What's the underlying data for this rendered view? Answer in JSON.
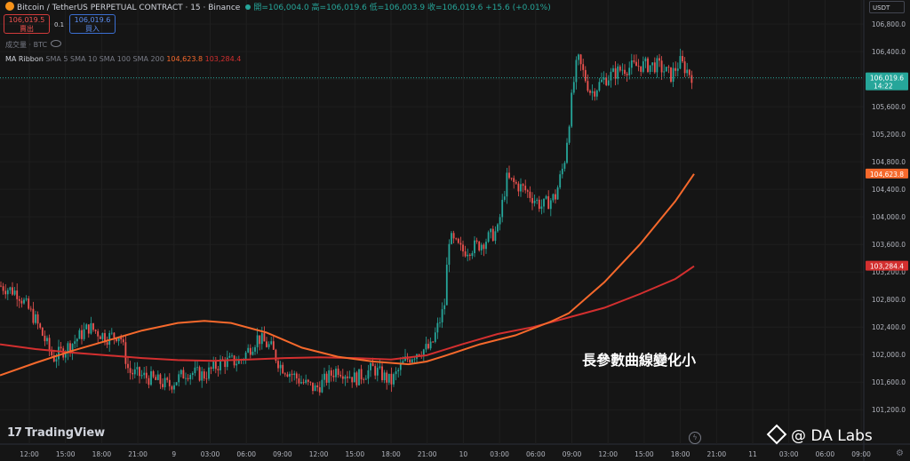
{
  "header": {
    "symbol": "Bitcoin / TetherUS PERPETUAL CONTRACT · 15 · Binance",
    "ohlc": "開=106,004.0  高=106,019.6  低=106,003.9  收=106,019.6  +15.6 (+0.01%)",
    "sell_price": "106,019.5",
    "sell_label": "賣出",
    "spread": "0.1",
    "buy_price": "106,019.6",
    "buy_label": "買入",
    "volume_label": "成交量 · BTC",
    "indicator_name": "MA Ribbon",
    "indicator_params": "SMA 5  SMA 10  SMA 100  SMA 200",
    "indicator_val1": "104,623.8",
    "indicator_val2": "103,284.4",
    "currency": "USDT"
  },
  "branding": {
    "tradingview": "TradingView",
    "watermark": "@ DA Labs"
  },
  "chart_data": {
    "type": "candlestick",
    "annotation": "長參數曲線變化小",
    "y_ticks": [
      101200,
      101600,
      102000,
      102400,
      102800,
      103200,
      103600,
      104000,
      104400,
      104800,
      105200,
      105600,
      106000,
      106400,
      106800
    ],
    "y_range": [
      100700,
      107150
    ],
    "x_ticks": [
      "12:00",
      "15:00",
      "18:00",
      "21:00",
      "9",
      "03:00",
      "06:00",
      "09:00",
      "12:00",
      "15:00",
      "18:00",
      "21:00",
      "10",
      "03:00",
      "06:00",
      "09:00",
      "12:00",
      "15:00",
      "18:00",
      "21:00",
      "11",
      "03:00",
      "06:00",
      "09:00"
    ],
    "price_labels": [
      {
        "text": "106,019.6",
        "sub": "14:22",
        "value": 106019.6,
        "color": "#26a69a"
      },
      {
        "text": "104,623.8",
        "value": 104623.8,
        "color": "#f6692c"
      },
      {
        "text": "103,284.4",
        "value": 103284.4,
        "color": "#d32f2f"
      }
    ],
    "ma_slow": [
      [
        0,
        102150
      ],
      [
        40,
        102080
      ],
      [
        80,
        102030
      ],
      [
        120,
        101990
      ],
      [
        160,
        101950
      ],
      [
        200,
        101920
      ],
      [
        240,
        101910
      ],
      [
        280,
        101930
      ],
      [
        320,
        101950
      ],
      [
        360,
        101960
      ],
      [
        400,
        101950
      ],
      [
        440,
        101930
      ],
      [
        480,
        101990
      ],
      [
        520,
        102150
      ],
      [
        560,
        102300
      ],
      [
        600,
        102400
      ],
      [
        640,
        102540
      ],
      [
        680,
        102680
      ],
      [
        720,
        102880
      ],
      [
        760,
        103100
      ],
      [
        781,
        103284.4
      ]
    ],
    "ma_fast": [
      [
        0,
        101700
      ],
      [
        40,
        101880
      ],
      [
        80,
        102050
      ],
      [
        120,
        102200
      ],
      [
        160,
        102350
      ],
      [
        200,
        102460
      ],
      [
        230,
        102490
      ],
      [
        260,
        102460
      ],
      [
        300,
        102320
      ],
      [
        340,
        102100
      ],
      [
        380,
        101970
      ],
      [
        420,
        101900
      ],
      [
        460,
        101860
      ],
      [
        480,
        101900
      ],
      [
        500,
        101980
      ],
      [
        540,
        102150
      ],
      [
        580,
        102280
      ],
      [
        620,
        102480
      ],
      [
        640,
        102600
      ],
      [
        680,
        103050
      ],
      [
        720,
        103600
      ],
      [
        760,
        104230
      ],
      [
        781,
        104623.8
      ]
    ],
    "candle_path": [
      [
        0,
        103000
      ],
      [
        20,
        102900
      ],
      [
        40,
        102500
      ],
      [
        60,
        101950
      ],
      [
        80,
        102150
      ],
      [
        100,
        102400
      ],
      [
        120,
        102250
      ],
      [
        135,
        102300
      ],
      [
        145,
        101750
      ],
      [
        170,
        101650
      ],
      [
        190,
        101550
      ],
      [
        210,
        101750
      ],
      [
        230,
        101700
      ],
      [
        250,
        101900
      ],
      [
        270,
        101900
      ],
      [
        290,
        102250
      ],
      [
        305,
        102100
      ],
      [
        315,
        101850
      ],
      [
        340,
        101600
      ],
      [
        355,
        101500
      ],
      [
        380,
        101800
      ],
      [
        400,
        101650
      ],
      [
        420,
        101800
      ],
      [
        440,
        101600
      ],
      [
        455,
        101900
      ],
      [
        470,
        102050
      ],
      [
        485,
        102100
      ],
      [
        500,
        102700
      ],
      [
        505,
        103700
      ],
      [
        520,
        103500
      ],
      [
        540,
        103600
      ],
      [
        560,
        103800
      ],
      [
        570,
        104550
      ],
      [
        590,
        104400
      ],
      [
        610,
        104150
      ],
      [
        625,
        104300
      ],
      [
        635,
        104800
      ],
      [
        645,
        105900
      ],
      [
        650,
        106300
      ],
      [
        665,
        105800
      ],
      [
        680,
        106000
      ],
      [
        700,
        106150
      ],
      [
        720,
        106200
      ],
      [
        740,
        106200
      ],
      [
        755,
        106050
      ],
      [
        765,
        106250
      ],
      [
        775,
        106100
      ],
      [
        781,
        106019.6
      ]
    ]
  }
}
